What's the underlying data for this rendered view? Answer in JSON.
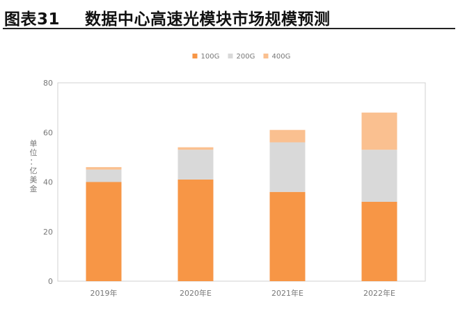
{
  "figure": {
    "label": "图表31",
    "title": "数据中心高速光模块市场规模预测"
  },
  "chart_data": {
    "type": "bar",
    "stacked": true,
    "categories": [
      "2019年",
      "2020年E",
      "2021年E",
      "2022年E"
    ],
    "series": [
      {
        "name": "100G",
        "values": [
          40,
          41,
          36,
          32
        ],
        "color": "#F79646"
      },
      {
        "name": "200G",
        "values": [
          5,
          12,
          20,
          21
        ],
        "color": "#D9D9D9"
      },
      {
        "name": "400G",
        "values": [
          1,
          1,
          5,
          15
        ],
        "color": "#FAC090"
      }
    ],
    "ylabel": "单位：亿美金",
    "ylim": [
      0,
      80
    ],
    "yticks": [
      0,
      20,
      40,
      60,
      80
    ],
    "legend": "top-center",
    "grid": false
  }
}
